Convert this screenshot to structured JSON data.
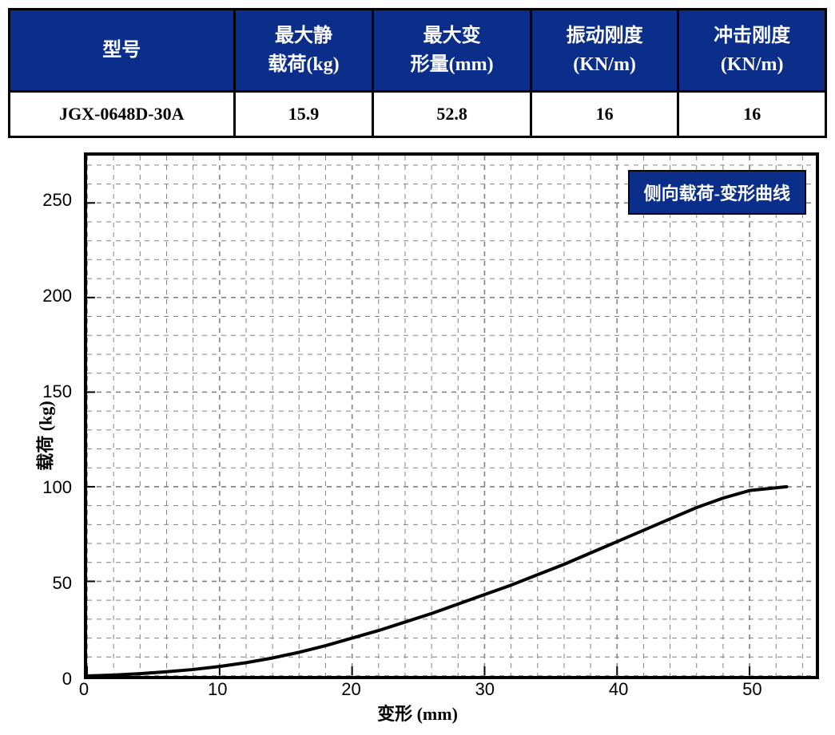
{
  "table": {
    "header_bg": "#0b2e8a",
    "header_fg": "#ffffff",
    "cell_bg": "#ffffff",
    "cell_fg": "#000000",
    "border_color": "#000000",
    "border_width": 3,
    "header_fontsize": 24,
    "cell_fontsize": 22,
    "columns": [
      {
        "label_line1": "型号",
        "label_line2": "",
        "width_pct": 28
      },
      {
        "label_line1": "最大静",
        "label_line2": "载荷(kg)",
        "width_pct": 18
      },
      {
        "label_line1": "最大变",
        "label_line2": "形量(mm)",
        "width_pct": 18
      },
      {
        "label_line1": "振动刚度",
        "label_line2": "(KN/m)",
        "width_pct": 18
      },
      {
        "label_line1": "冲击刚度",
        "label_line2": "(KN/m)",
        "width_pct": 18
      }
    ],
    "rows": [
      [
        "JGX-0648D-30A",
        "15.9",
        "52.8",
        "16",
        "16"
      ]
    ]
  },
  "chart": {
    "type": "line",
    "legend_text": "侧向载荷-变形曲线",
    "legend_bg": "#0b2e8a",
    "legend_fg": "#ffffff",
    "legend_fontsize": 22,
    "xlabel": "变形 (mm)",
    "ylabel": "载荷 (kg)",
    "label_fontsize": 22,
    "tick_fontsize": 22,
    "xlim": [
      0,
      55
    ],
    "ylim": [
      0,
      275
    ],
    "x_ticks": [
      0,
      10,
      20,
      30,
      40,
      50
    ],
    "y_ticks": [
      0,
      50,
      100,
      150,
      200,
      250
    ],
    "x_minor_step": 2,
    "y_minor_step": 10,
    "major_grid_color": "#808080",
    "minor_grid_color": "#808080",
    "grid_dash": "6,6",
    "background_color": "#ffffff",
    "border_color": "#000000",
    "border_width": 4,
    "line_color": "#000000",
    "line_width": 4,
    "series": {
      "x": [
        0,
        2,
        4,
        6,
        8,
        10,
        12,
        14,
        16,
        18,
        20,
        22,
        24,
        26,
        28,
        30,
        32,
        34,
        36,
        38,
        40,
        42,
        44,
        46,
        48,
        50,
        52.8
      ],
      "y": [
        0,
        0.5,
        1.2,
        2.2,
        3.4,
        5.0,
        7.0,
        9.5,
        12.5,
        16.0,
        20.0,
        24.0,
        28.5,
        33.0,
        38.0,
        43.0,
        48.0,
        53.5,
        59.0,
        65.0,
        71.0,
        77.0,
        83.0,
        89.0,
        94.0,
        98.0,
        100.0
      ]
    }
  }
}
